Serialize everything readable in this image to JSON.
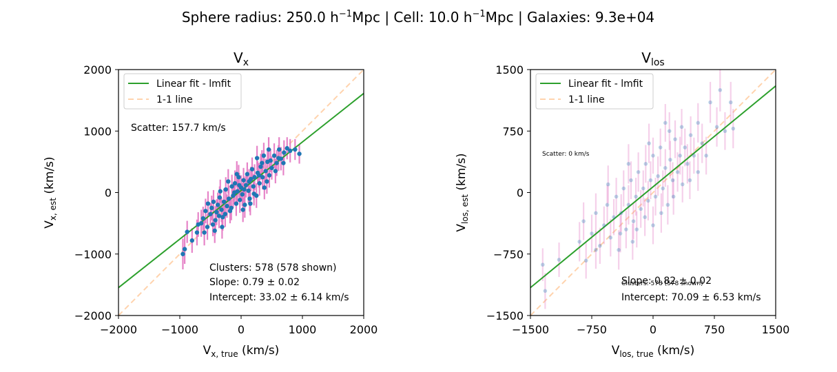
{
  "suptitle": {
    "pre": "Sphere radius: 250.0 h",
    "sup1": "−1",
    "mid": "Mpc | Cell: 10.0 h",
    "sup2": "−1",
    "post": "Mpc | Galaxies: 9.3e+04"
  },
  "colors": {
    "fit": "#2ca02c",
    "one_to_one": "#ffd3ad",
    "points": "#1f77b4",
    "errorbars": "#e377c2"
  },
  "chart_data": [
    {
      "type": "scatter",
      "title": {
        "main": "V",
        "sub": "x"
      },
      "xlabel": {
        "main": "V",
        "sub": "x, true",
        "unit": " (km/s)"
      },
      "ylabel": {
        "main": "V",
        "sub": "x, est",
        "unit": " (km/s)"
      },
      "xlim": [
        -2000,
        2000
      ],
      "ylim": [
        -2000,
        2000
      ],
      "xticks": [
        -2000,
        -1000,
        0,
        1000,
        2000
      ],
      "yticks": [
        -2000,
        -1000,
        0,
        1000,
        2000
      ],
      "xtick_labels": [
        "−2000",
        "−1000",
        "0",
        "1000",
        "2000"
      ],
      "ytick_labels": [
        "−2000",
        "−1000",
        "0",
        "1000",
        "2000"
      ],
      "grid": false,
      "legend": {
        "placement": "upper-left",
        "entries": [
          "Linear fit - lmfit",
          "1-1 line"
        ]
      },
      "fit": {
        "slope": 0.79,
        "intercept": 33.02
      },
      "identity_line": {
        "slope": 1,
        "intercept": 0
      },
      "annotations": {
        "scatter": "Scatter: 157.7 km/s",
        "clusters": "Clusters: 578 (578 shown)",
        "slope": "Slope: 0.79 ± 0.02",
        "intercept": "Intercept: 33.02 ± 6.14 km/s"
      },
      "point_style": {
        "alpha": 1,
        "radius": 3.2
      },
      "points": [
        {
          "x": -950,
          "y": -1000,
          "e": 250
        },
        {
          "x": -920,
          "y": -920,
          "e": 240
        },
        {
          "x": -880,
          "y": -640,
          "e": 180
        },
        {
          "x": -800,
          "y": -780,
          "e": 200
        },
        {
          "x": -720,
          "y": -650,
          "e": 210
        },
        {
          "x": -650,
          "y": -500,
          "e": 220
        },
        {
          "x": -620,
          "y": -420,
          "e": 190
        },
        {
          "x": -580,
          "y": -300,
          "e": 200
        },
        {
          "x": -550,
          "y": -560,
          "e": 210
        },
        {
          "x": -500,
          "y": -350,
          "e": 180
        },
        {
          "x": -480,
          "y": -250,
          "e": 200
        },
        {
          "x": -450,
          "y": -150,
          "e": 190
        },
        {
          "x": -420,
          "y": -450,
          "e": 230
        },
        {
          "x": -400,
          "y": -320,
          "e": 210
        },
        {
          "x": -380,
          "y": -200,
          "e": 200
        },
        {
          "x": -350,
          "y": -80,
          "e": 180
        },
        {
          "x": -320,
          "y": -280,
          "e": 200
        },
        {
          "x": -300,
          "y": -400,
          "e": 220
        },
        {
          "x": -280,
          "y": -150,
          "e": 210
        },
        {
          "x": -250,
          "y": 50,
          "e": 200
        },
        {
          "x": -230,
          "y": -220,
          "e": 190
        },
        {
          "x": -200,
          "y": -100,
          "e": 210
        },
        {
          "x": -180,
          "y": -300,
          "e": 200
        },
        {
          "x": -150,
          "y": 100,
          "e": 190
        },
        {
          "x": -130,
          "y": -50,
          "e": 200
        },
        {
          "x": -100,
          "y": 150,
          "e": 210
        },
        {
          "x": -80,
          "y": -180,
          "e": 200
        },
        {
          "x": -60,
          "y": 20,
          "e": 190
        },
        {
          "x": -40,
          "y": 250,
          "e": 200
        },
        {
          "x": -20,
          "y": -120,
          "e": 210
        },
        {
          "x": 0,
          "y": 80,
          "e": 200
        },
        {
          "x": 20,
          "y": -30,
          "e": 190
        },
        {
          "x": 40,
          "y": 200,
          "e": 200
        },
        {
          "x": 60,
          "y": -200,
          "e": 210
        },
        {
          "x": 80,
          "y": 120,
          "e": 200
        },
        {
          "x": 100,
          "y": 300,
          "e": 190
        },
        {
          "x": 120,
          "y": 30,
          "e": 200
        },
        {
          "x": 140,
          "y": -100,
          "e": 210
        },
        {
          "x": 160,
          "y": 220,
          "e": 200
        },
        {
          "x": 180,
          "y": 380,
          "e": 190
        },
        {
          "x": 200,
          "y": 100,
          "e": 200
        },
        {
          "x": 220,
          "y": 250,
          "e": 210
        },
        {
          "x": 250,
          "y": -50,
          "e": 200
        },
        {
          "x": 270,
          "y": 320,
          "e": 190
        },
        {
          "x": 300,
          "y": 150,
          "e": 200
        },
        {
          "x": 320,
          "y": 420,
          "e": 210
        },
        {
          "x": 350,
          "y": 250,
          "e": 200
        },
        {
          "x": 380,
          "y": 80,
          "e": 190
        },
        {
          "x": 400,
          "y": 350,
          "e": 200
        },
        {
          "x": 430,
          "y": 500,
          "e": 210
        },
        {
          "x": 460,
          "y": 280,
          "e": 200
        },
        {
          "x": 500,
          "y": 400,
          "e": 190
        },
        {
          "x": 540,
          "y": 600,
          "e": 200
        },
        {
          "x": 580,
          "y": 480,
          "e": 210
        },
        {
          "x": 620,
          "y": 700,
          "e": 200
        },
        {
          "x": 650,
          "y": 550,
          "e": 190
        },
        {
          "x": 700,
          "y": 650,
          "e": 200
        },
        {
          "x": 750,
          "y": 720,
          "e": 180
        },
        {
          "x": 800,
          "y": 680,
          "e": 190
        },
        {
          "x": 880,
          "y": 700,
          "e": 170
        },
        {
          "x": 950,
          "y": 630,
          "e": 160
        },
        {
          "x": -700,
          "y": -520,
          "e": 200
        },
        {
          "x": -600,
          "y": -650,
          "e": 210
        },
        {
          "x": -540,
          "y": -180,
          "e": 200
        },
        {
          "x": -460,
          "y": -520,
          "e": 190
        },
        {
          "x": -360,
          "y": -380,
          "e": 200
        },
        {
          "x": -260,
          "y": -350,
          "e": 210
        },
        {
          "x": -160,
          "y": -250,
          "e": 200
        },
        {
          "x": -110,
          "y": 0,
          "e": 190
        },
        {
          "x": -30,
          "y": 120,
          "e": 200
        },
        {
          "x": 50,
          "y": 50,
          "e": 210
        },
        {
          "x": 130,
          "y": 180,
          "e": 200
        },
        {
          "x": 210,
          "y": -20,
          "e": 190
        },
        {
          "x": 290,
          "y": 280,
          "e": 200
        },
        {
          "x": 340,
          "y": 480,
          "e": 210
        },
        {
          "x": 420,
          "y": 180,
          "e": 200
        },
        {
          "x": 480,
          "y": 520,
          "e": 190
        },
        {
          "x": 560,
          "y": 350,
          "e": 200
        },
        {
          "x": 610,
          "y": 560,
          "e": 210
        },
        {
          "x": 690,
          "y": 480,
          "e": 200
        },
        {
          "x": -340,
          "y": 20,
          "e": 190
        },
        {
          "x": -210,
          "y": 180,
          "e": 200
        },
        {
          "x": -70,
          "y": 300,
          "e": 210
        },
        {
          "x": 30,
          "y": -280,
          "e": 200
        },
        {
          "x": 150,
          "y": -180,
          "e": 190
        },
        {
          "x": 260,
          "y": 560,
          "e": 200
        },
        {
          "x": 370,
          "y": 600,
          "e": 210
        },
        {
          "x": -430,
          "y": -620,
          "e": 200
        },
        {
          "x": -310,
          "y": -560,
          "e": 190
        },
        {
          "x": 450,
          "y": 700,
          "e": 200
        }
      ]
    },
    {
      "type": "scatter",
      "title": {
        "main": "V",
        "sub": "los"
      },
      "xlabel": {
        "main": "V",
        "sub": "los, true",
        "unit": " (km/s)"
      },
      "ylabel": {
        "main": "V",
        "sub": "los, est",
        "unit": " (km/s)"
      },
      "xlim": [
        -1500,
        1500
      ],
      "ylim": [
        -1500,
        1500
      ],
      "xticks": [
        -1500,
        -750,
        0,
        750,
        1500
      ],
      "yticks": [
        -1500,
        -750,
        0,
        750,
        1500
      ],
      "xtick_labels": [
        "−1500",
        "−750",
        "0",
        "750",
        "1500"
      ],
      "ytick_labels": [
        "−1500",
        "−750",
        "0",
        "750",
        "1500"
      ],
      "grid": false,
      "legend": {
        "placement": "upper-left",
        "entries": [
          "Linear fit - lmfit",
          "1-1 line"
        ]
      },
      "fit": {
        "slope": 0.82,
        "intercept": 70.09
      },
      "identity_line": {
        "slope": 1,
        "intercept": 0
      },
      "annotations": {
        "scatter": "Scatter: 0 km/s",
        "clusters": "Clusters: 578 (578 shown)",
        "slope": "Slope: 0.82 ± 0.02",
        "intercept": "Intercept: 70.09 ± 6.53 km/s"
      },
      "point_style": {
        "alpha": 0.3,
        "radius": 2.8
      },
      "points": [
        {
          "x": -1350,
          "y": -880,
          "e": 200
        },
        {
          "x": -1320,
          "y": -1200,
          "e": 220
        },
        {
          "x": -1150,
          "y": -820,
          "e": 210
        },
        {
          "x": -900,
          "y": -600,
          "e": 240
        },
        {
          "x": -850,
          "y": -350,
          "e": 230
        },
        {
          "x": -820,
          "y": -830,
          "e": 220
        },
        {
          "x": -750,
          "y": -500,
          "e": 230
        },
        {
          "x": -700,
          "y": -250,
          "e": 240
        },
        {
          "x": -650,
          "y": -650,
          "e": 220
        },
        {
          "x": -600,
          "y": -400,
          "e": 230
        },
        {
          "x": -560,
          "y": -150,
          "e": 240
        },
        {
          "x": -520,
          "y": -550,
          "e": 230
        },
        {
          "x": -480,
          "y": -300,
          "e": 220
        },
        {
          "x": -450,
          "y": -50,
          "e": 230
        },
        {
          "x": -420,
          "y": -700,
          "e": 240
        },
        {
          "x": -390,
          "y": -250,
          "e": 230
        },
        {
          "x": -360,
          "y": 50,
          "e": 220
        },
        {
          "x": -330,
          "y": -450,
          "e": 230
        },
        {
          "x": -300,
          "y": -150,
          "e": 240
        },
        {
          "x": -270,
          "y": 150,
          "e": 230
        },
        {
          "x": -240,
          "y": -350,
          "e": 220
        },
        {
          "x": -210,
          "y": -50,
          "e": 230
        },
        {
          "x": -180,
          "y": 250,
          "e": 240
        },
        {
          "x": -150,
          "y": -200,
          "e": 230
        },
        {
          "x": -120,
          "y": 50,
          "e": 220
        },
        {
          "x": -90,
          "y": 350,
          "e": 230
        },
        {
          "x": -60,
          "y": -100,
          "e": 240
        },
        {
          "x": -30,
          "y": 150,
          "e": 230
        },
        {
          "x": 0,
          "y": 450,
          "e": 220
        },
        {
          "x": 30,
          "y": -50,
          "e": 230
        },
        {
          "x": 60,
          "y": 200,
          "e": 240
        },
        {
          "x": 90,
          "y": 550,
          "e": 230
        },
        {
          "x": 120,
          "y": 50,
          "e": 220
        },
        {
          "x": 150,
          "y": 300,
          "e": 230
        },
        {
          "x": 180,
          "y": -150,
          "e": 240
        },
        {
          "x": 210,
          "y": 400,
          "e": 230
        },
        {
          "x": 240,
          "y": 150,
          "e": 220
        },
        {
          "x": 270,
          "y": 650,
          "e": 230
        },
        {
          "x": 300,
          "y": 250,
          "e": 240
        },
        {
          "x": 330,
          "y": 450,
          "e": 230
        },
        {
          "x": 360,
          "y": 100,
          "e": 220
        },
        {
          "x": 390,
          "y": 550,
          "e": 230
        },
        {
          "x": 420,
          "y": 350,
          "e": 240
        },
        {
          "x": 460,
          "y": 700,
          "e": 230
        },
        {
          "x": 500,
          "y": 450,
          "e": 220
        },
        {
          "x": 550,
          "y": 250,
          "e": 230
        },
        {
          "x": 600,
          "y": 600,
          "e": 240
        },
        {
          "x": 650,
          "y": 450,
          "e": 230
        },
        {
          "x": 700,
          "y": 1100,
          "e": 250
        },
        {
          "x": 780,
          "y": 800,
          "e": 240
        },
        {
          "x": 820,
          "y": 1250,
          "e": 260
        },
        {
          "x": 880,
          "y": 750,
          "e": 230
        },
        {
          "x": 950,
          "y": 1100,
          "e": 250
        },
        {
          "x": 980,
          "y": 780,
          "e": 240
        },
        {
          "x": -400,
          "y": -500,
          "e": 230
        },
        {
          "x": -200,
          "y": -450,
          "e": 220
        },
        {
          "x": -100,
          "y": -300,
          "e": 230
        },
        {
          "x": 100,
          "y": -250,
          "e": 240
        },
        {
          "x": 200,
          "y": 750,
          "e": 230
        },
        {
          "x": 350,
          "y": 800,
          "e": 220
        },
        {
          "x": -550,
          "y": 100,
          "e": 230
        },
        {
          "x": -300,
          "y": 350,
          "e": 240
        },
        {
          "x": 0,
          "y": -400,
          "e": 230
        },
        {
          "x": 250,
          "y": -50,
          "e": 220
        },
        {
          "x": 450,
          "y": 150,
          "e": 230
        },
        {
          "x": -50,
          "y": 600,
          "e": 240
        },
        {
          "x": 150,
          "y": 850,
          "e": 230
        },
        {
          "x": -250,
          "y": -600,
          "e": 220
        },
        {
          "x": -700,
          "y": -700,
          "e": 230
        },
        {
          "x": 550,
          "y": 850,
          "e": 240
        }
      ]
    }
  ]
}
